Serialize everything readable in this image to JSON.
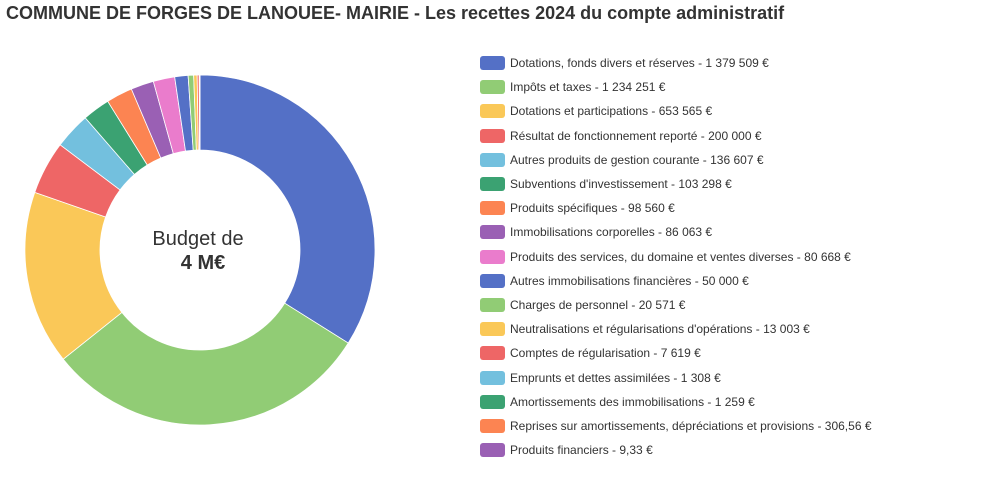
{
  "chart_data": {
    "type": "pie",
    "title": "COMMUNE DE FORGES DE LANOUEE- MAIRIE - Les recettes 2024 du compte administratif",
    "center_label": {
      "line1": "Budget de",
      "line2": "4 M€"
    },
    "legend_position": "right",
    "slices": [
      {
        "label": "Dotations, fonds divers et réserves - 1 379 509 €",
        "value": 1379509,
        "color": "#5470c6"
      },
      {
        "label": "Impôts et taxes - 1 234 251 €",
        "value": 1234251,
        "color": "#91cc75"
      },
      {
        "label": "Dotations et participations - 653 565 €",
        "value": 653565,
        "color": "#fac858"
      },
      {
        "label": "Résultat de fonctionnement reporté - 200 000 €",
        "value": 200000,
        "color": "#ee6666"
      },
      {
        "label": "Autres produits de gestion courante - 136 607 €",
        "value": 136607,
        "color": "#73c0de"
      },
      {
        "label": "Subventions d'investissement - 103 298 €",
        "value": 103298,
        "color": "#3ba272"
      },
      {
        "label": "Produits spécifiques - 98 560 €",
        "value": 98560,
        "color": "#fc8452"
      },
      {
        "label": "Immobilisations corporelles - 86 063 €",
        "value": 86063,
        "color": "#9a60b4"
      },
      {
        "label": "Produits des services, du domaine et ventes diverses - 80 668 €",
        "value": 80668,
        "color": "#ea7ccc"
      },
      {
        "label": "Autres immobilisations financières - 50 000 €",
        "value": 50000,
        "color": "#5470c6"
      },
      {
        "label": "Charges de personnel - 20 571 €",
        "value": 20571,
        "color": "#91cc75"
      },
      {
        "label": "Neutralisations et régularisations d'opérations - 13 003 €",
        "value": 13003,
        "color": "#fac858"
      },
      {
        "label": "Comptes de régularisation - 7 619 €",
        "value": 7619,
        "color": "#ee6666"
      },
      {
        "label": "Emprunts et dettes assimilées - 1 308 €",
        "value": 1308,
        "color": "#73c0de"
      },
      {
        "label": "Amortissements des immobilisations - 1 259 €",
        "value": 1259,
        "color": "#3ba272"
      },
      {
        "label": "Reprises sur amortissements, dépréciations et provisions - 306,56 €",
        "value": 306.56,
        "color": "#fc8452"
      },
      {
        "label": "Produits financiers - 9,33 €",
        "value": 9.33,
        "color": "#9a60b4"
      }
    ]
  }
}
